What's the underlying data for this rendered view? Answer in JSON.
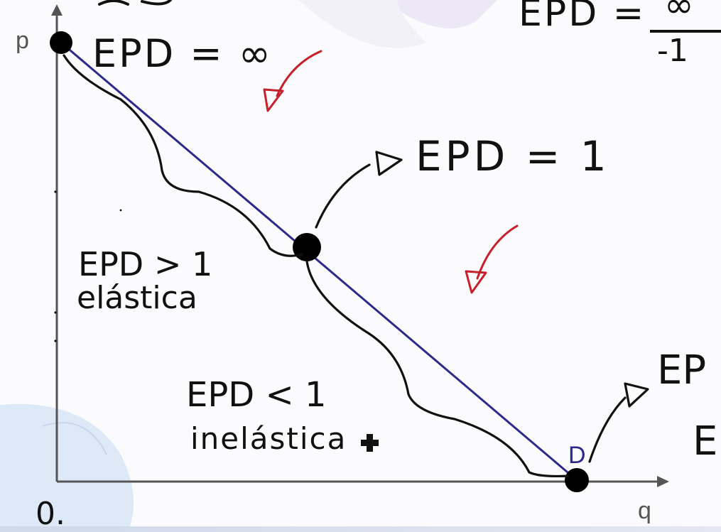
{
  "axes": {
    "y_label": "p",
    "x_label": "q",
    "origin_label": "0."
  },
  "curve": {
    "label": "D",
    "color": "#2b2a8c"
  },
  "annotations": {
    "epd_infinity": "EPD = ∞",
    "epd_one": "EPD = 1",
    "elastic_top": "EPD > 1",
    "elastic_bottom": "elástica",
    "inelastic_top": "EPD < 1",
    "inelastic_bottom": "inelástica",
    "cut_top_right": "EPD =",
    "cut_top_right_frac_num": "∞",
    "cut_top_right_frac_den": "-1",
    "cut_bottom_right_top": "EP",
    "cut_bottom_right_bottom": "E"
  },
  "colors": {
    "ink": "#111111",
    "red_arrow": "#c8202a",
    "axis": "#555555",
    "demand_line": "#2b2a8c"
  }
}
